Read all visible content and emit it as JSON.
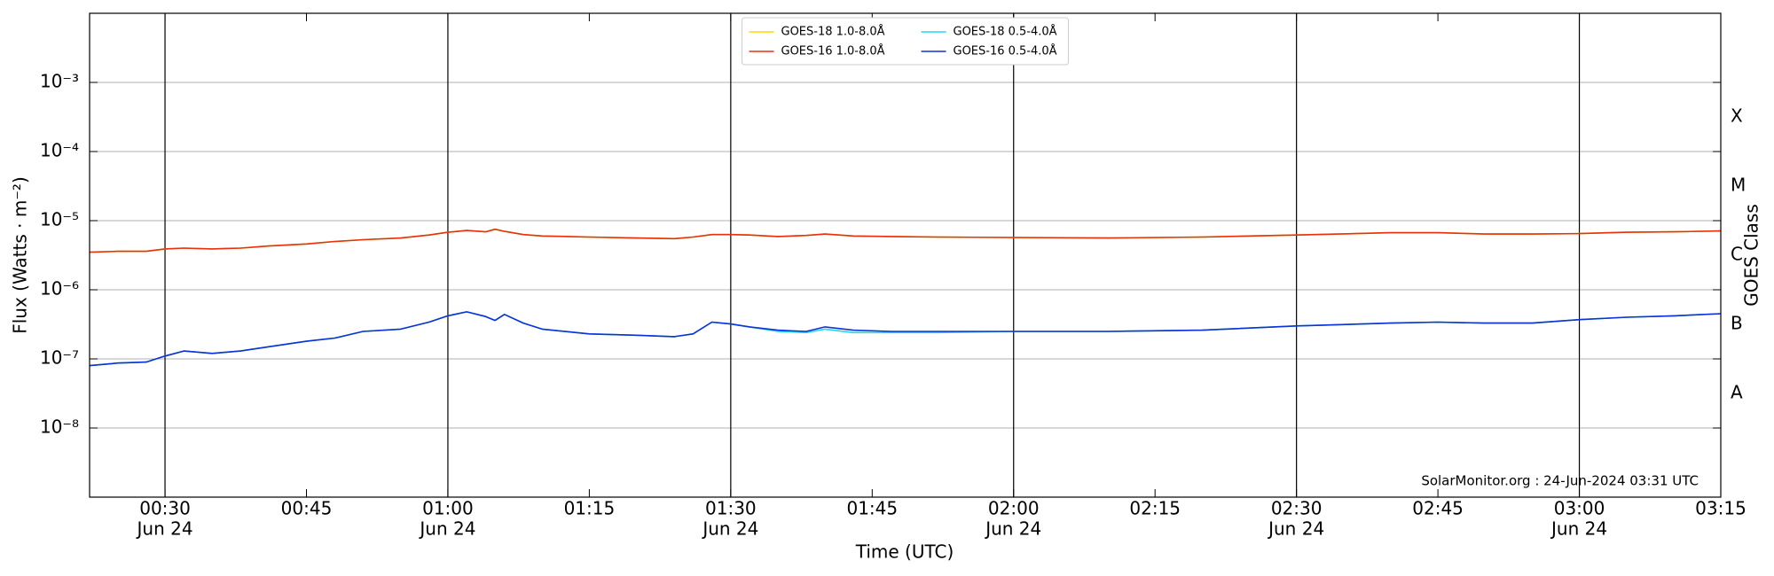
{
  "chart_data": {
    "type": "line",
    "x_label": "Time (UTC)",
    "y_label": "Flux (Watts · m⁻²)",
    "y2_label": "GOES Class",
    "annotation": "SolarMonitor.org : 24-Jun-2024 03:31 UTC",
    "x": [
      "00:22",
      "00:25",
      "00:28",
      "00:30",
      "00:32",
      "00:35",
      "00:38",
      "00:41",
      "00:45",
      "00:48",
      "00:51",
      "00:55",
      "00:58",
      "01:00",
      "01:02",
      "01:04",
      "01:05",
      "01:06",
      "01:08",
      "01:10",
      "01:15",
      "01:20",
      "01:24",
      "01:26",
      "01:28",
      "01:30",
      "01:32",
      "01:35",
      "01:38",
      "01:40",
      "01:43",
      "01:47",
      "01:52",
      "02:00",
      "02:10",
      "02:20",
      "02:30",
      "02:40",
      "02:45",
      "02:50",
      "02:55",
      "03:00",
      "03:05",
      "03:10",
      "03:15"
    ],
    "xlim": [
      "00:22",
      "03:15"
    ],
    "xticks": [
      "00:30",
      "00:45",
      "01:00",
      "01:15",
      "01:30",
      "01:45",
      "02:00",
      "02:15",
      "02:30",
      "02:45",
      "03:00",
      "03:15"
    ],
    "xtick_sublabels": [
      "Jun 24",
      null,
      "Jun 24",
      null,
      "Jun 24",
      null,
      "Jun 24",
      null,
      "Jun 24",
      null,
      "Jun 24",
      null
    ],
    "ylog": true,
    "ylim": [
      1e-09,
      0.01
    ],
    "yticks": [
      {
        "value": 1e-08,
        "label": "10⁻⁸"
      },
      {
        "value": 1e-07,
        "label": "10⁻⁷"
      },
      {
        "value": 1e-06,
        "label": "10⁻⁶"
      },
      {
        "value": 1e-05,
        "label": "10⁻⁵"
      },
      {
        "value": 0.0001,
        "label": "10⁻⁴"
      },
      {
        "value": 0.001,
        "label": "10⁻³"
      }
    ],
    "y2lim": [
      1e-09,
      0.01
    ],
    "y2ticks": [
      {
        "value": 3.16e-08,
        "label": "A"
      },
      {
        "value": 3.16e-07,
        "label": "B"
      },
      {
        "value": 3.16e-06,
        "label": "C"
      },
      {
        "value": 3.16e-05,
        "label": "M"
      },
      {
        "value": 0.000316,
        "label": "X"
      }
    ],
    "grid": true,
    "legend": "upper center",
    "series": [
      {
        "name": "GOES-18 1.0-8.0Å",
        "color": "#ffd700",
        "values": [
          3.5e-06,
          3.6e-06,
          3.6e-06,
          3.9e-06,
          4e-06,
          3.9e-06,
          4e-06,
          4.3e-06,
          4.6e-06,
          5e-06,
          5.3e-06,
          5.6e-06,
          6.2e-06,
          6.8e-06,
          7.2e-06,
          6.9e-06,
          7.5e-06,
          7e-06,
          6.3e-06,
          6e-06,
          5.8e-06,
          5.6e-06,
          5.5e-06,
          5.8e-06,
          6.3e-06,
          6.3e-06,
          6.2e-06,
          5.9e-06,
          6.1e-06,
          6.4e-06,
          6e-06,
          5.9e-06,
          5.8e-06,
          5.7e-06,
          5.6e-06,
          5.8e-06,
          6.2e-06,
          6.7e-06,
          6.7e-06,
          6.4e-06,
          6.4e-06,
          6.5e-06,
          6.8e-06,
          6.9e-06,
          7.1e-06
        ]
      },
      {
        "name": "GOES-16 1.0-8.0Å",
        "color": "#e8300e",
        "values": [
          3.5e-06,
          3.6e-06,
          3.6e-06,
          3.9e-06,
          4e-06,
          3.9e-06,
          4e-06,
          4.3e-06,
          4.6e-06,
          5e-06,
          5.3e-06,
          5.6e-06,
          6.2e-06,
          6.8e-06,
          7.2e-06,
          6.9e-06,
          7.5e-06,
          7e-06,
          6.3e-06,
          6e-06,
          5.8e-06,
          5.6e-06,
          5.5e-06,
          5.8e-06,
          6.3e-06,
          6.3e-06,
          6.2e-06,
          5.9e-06,
          6.1e-06,
          6.4e-06,
          6e-06,
          5.9e-06,
          5.8e-06,
          5.7e-06,
          5.6e-06,
          5.8e-06,
          6.2e-06,
          6.7e-06,
          6.7e-06,
          6.4e-06,
          6.4e-06,
          6.5e-06,
          6.8e-06,
          6.9e-06,
          7.1e-06
        ]
      },
      {
        "name": "GOES-18 0.5-4.0Å",
        "color": "#22d8f0",
        "values": [
          8e-08,
          8.7e-08,
          9e-08,
          1.1e-07,
          1.3e-07,
          1.2e-07,
          1.3e-07,
          1.5e-07,
          1.8e-07,
          2e-07,
          2.5e-07,
          2.7e-07,
          3.4e-07,
          4.2e-07,
          4.8e-07,
          4.1e-07,
          3.6e-07,
          4.4e-07,
          3.3e-07,
          2.7e-07,
          2.3e-07,
          2.2e-07,
          2.1e-07,
          2.3e-07,
          3.4e-07,
          3.2e-07,
          2.9e-07,
          2.5e-07,
          2.4e-07,
          2.7e-07,
          2.4e-07,
          2.4e-07,
          2.4e-07,
          2.5e-07,
          2.5e-07,
          2.6e-07,
          3e-07,
          3.3e-07,
          3.4e-07,
          3.3e-07,
          3.3e-07,
          3.7e-07,
          4e-07,
          4.2e-07,
          4.5e-07
        ]
      },
      {
        "name": "GOES-16 0.5-4.0Å",
        "color": "#1030d8",
        "values": [
          8e-08,
          8.7e-08,
          9e-08,
          1.1e-07,
          1.3e-07,
          1.2e-07,
          1.3e-07,
          1.5e-07,
          1.8e-07,
          2e-07,
          2.5e-07,
          2.7e-07,
          3.4e-07,
          4.2e-07,
          4.8e-07,
          4.1e-07,
          3.6e-07,
          4.4e-07,
          3.3e-07,
          2.7e-07,
          2.3e-07,
          2.2e-07,
          2.1e-07,
          2.3e-07,
          3.4e-07,
          3.2e-07,
          2.9e-07,
          2.6e-07,
          2.5e-07,
          2.9e-07,
          2.6e-07,
          2.5e-07,
          2.5e-07,
          2.5e-07,
          2.5e-07,
          2.6e-07,
          3e-07,
          3.3e-07,
          3.4e-07,
          3.3e-07,
          3.3e-07,
          3.7e-07,
          4e-07,
          4.2e-07,
          4.5e-07
        ]
      }
    ]
  }
}
